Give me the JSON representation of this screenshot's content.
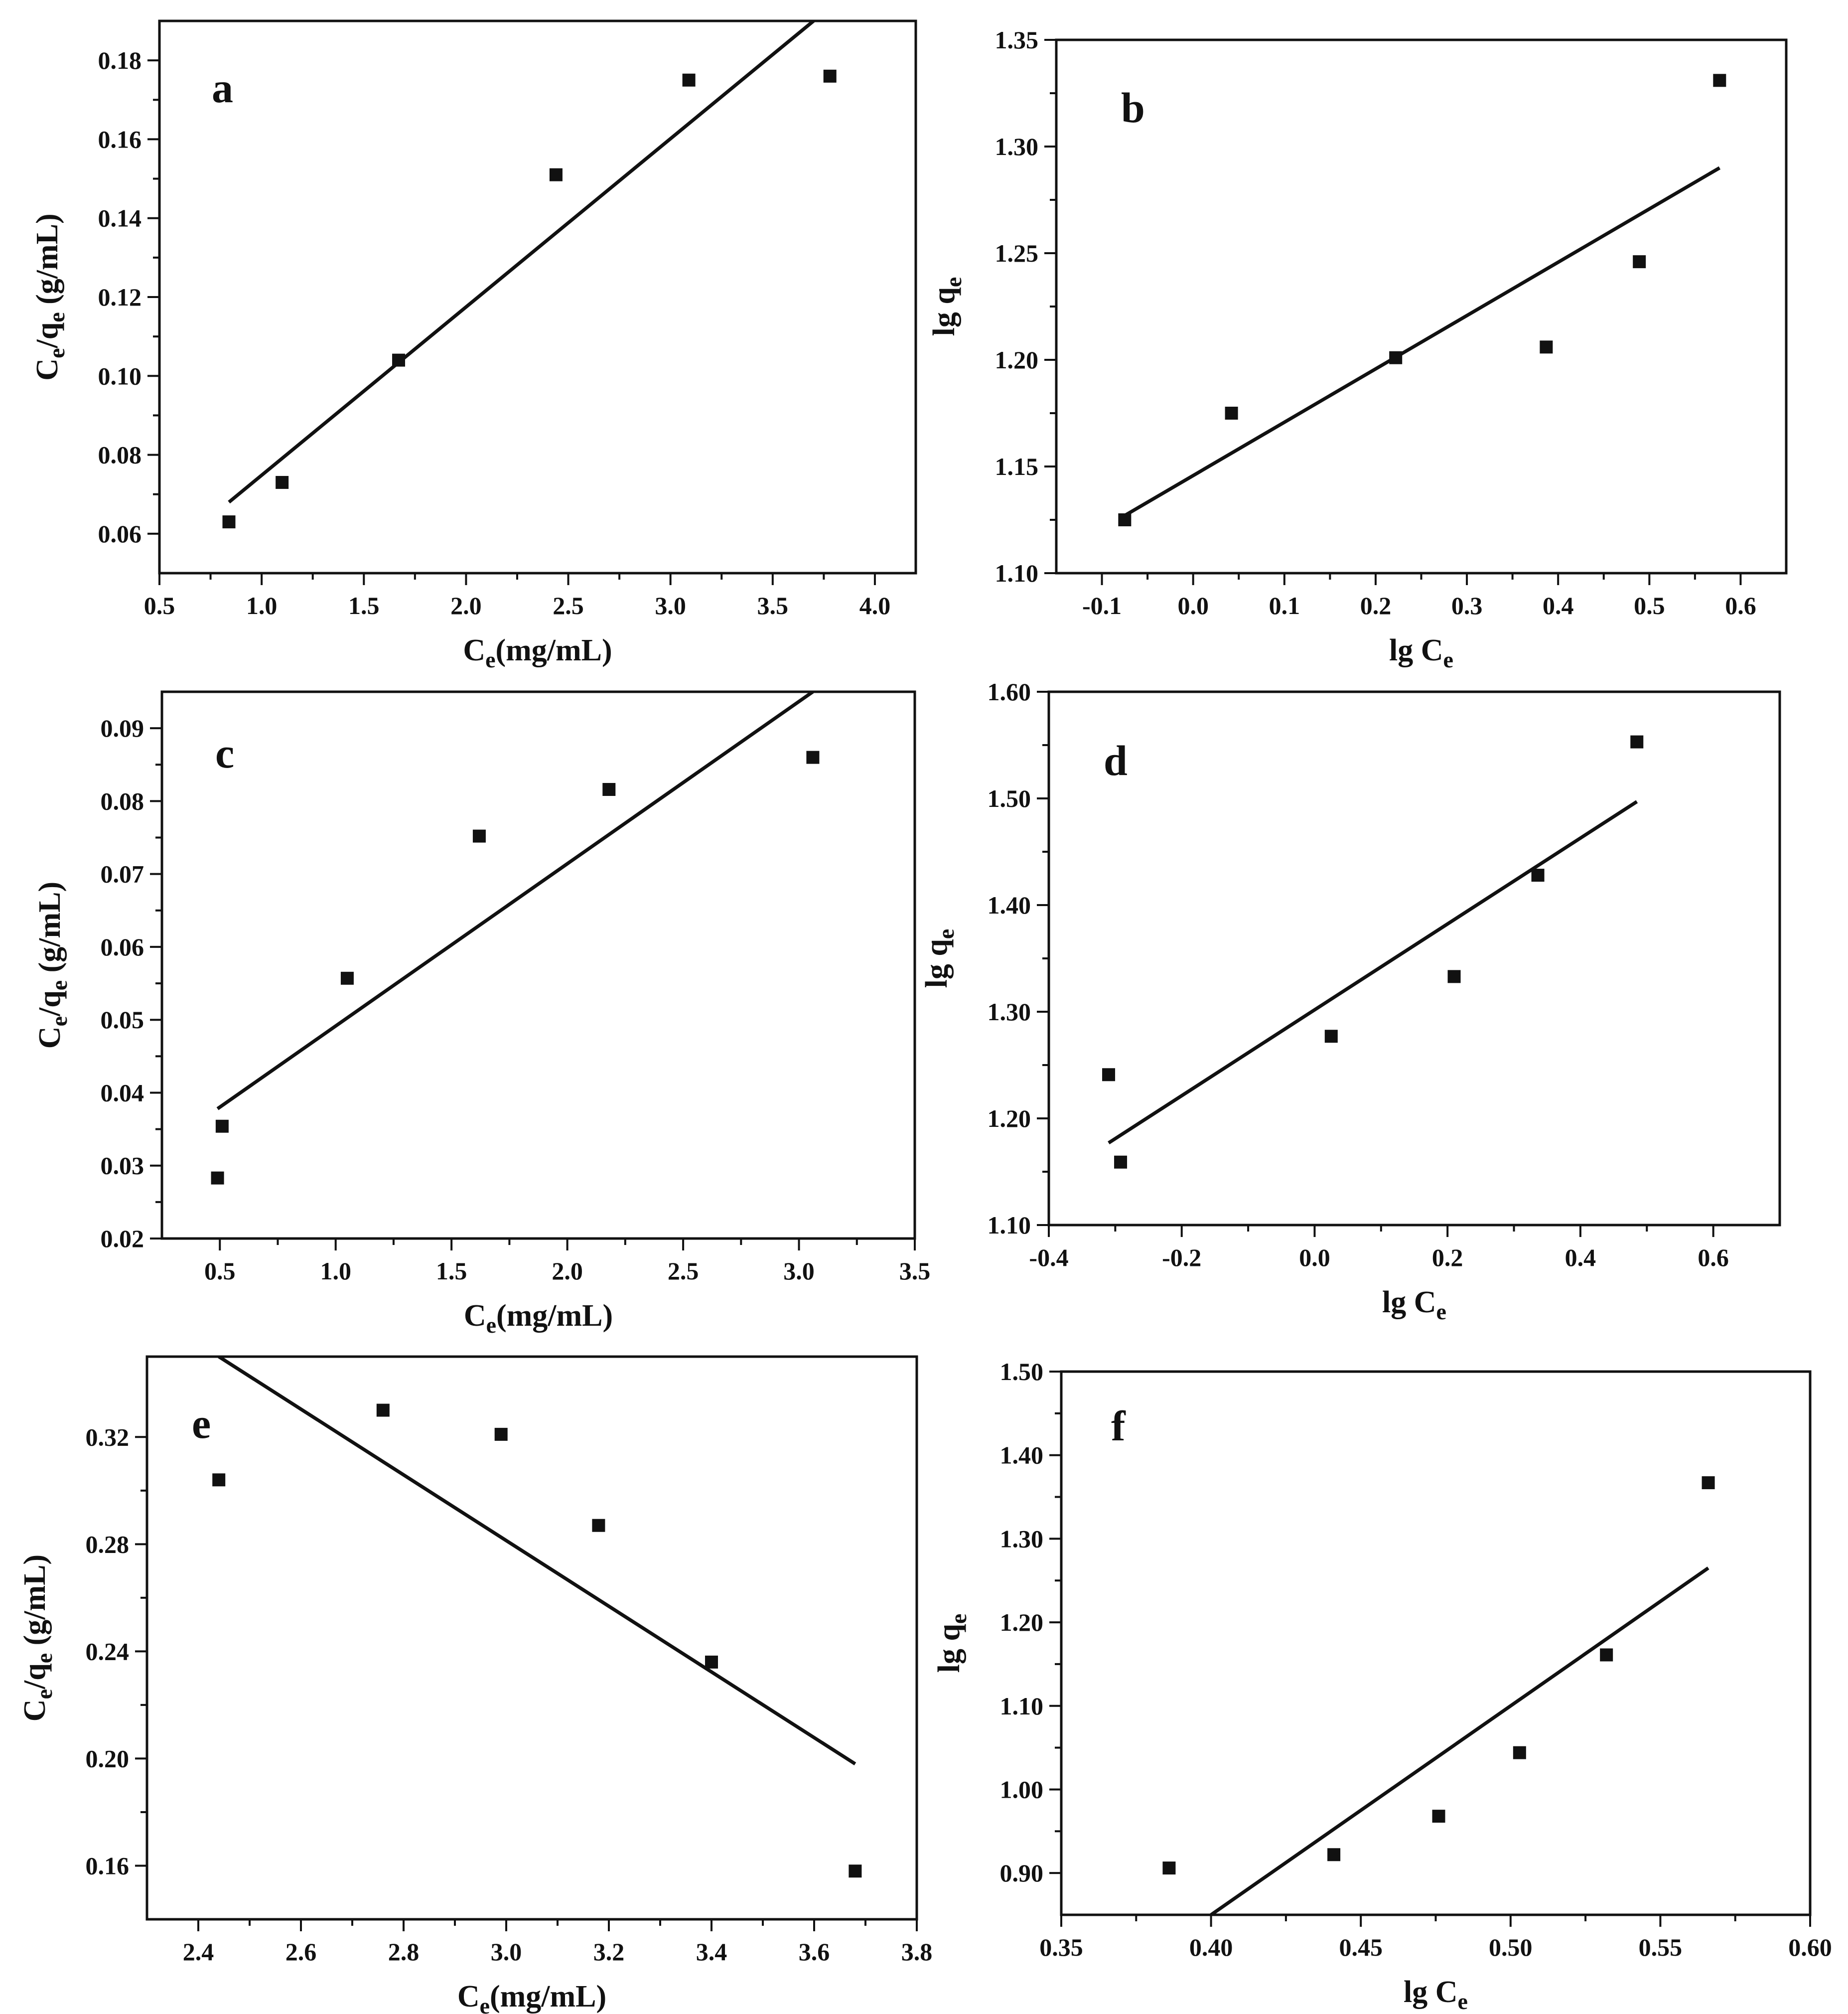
{
  "colors": {
    "ink": "#111111",
    "background": "#ffffff"
  },
  "chart_data": [
    {
      "panel": "a",
      "type": "scatter",
      "xlabel": {
        "base": "C",
        "sub": "e",
        "tail": "(mg/mL)"
      },
      "ylabel": {
        "base": "C",
        "sub": "e",
        "mid": "/q",
        "sub2": "e",
        "tail": " (g/mL)"
      },
      "xlim": [
        0.5,
        4.2
      ],
      "ylim": [
        0.05,
        0.19
      ],
      "xticks": [
        0.5,
        1.0,
        1.5,
        2.0,
        2.5,
        3.0,
        3.5,
        4.0
      ],
      "xtick_labels": [
        "0.5",
        "1.0",
        "1.5",
        "2.0",
        "2.5",
        "3.0",
        "3.5",
        "4.0"
      ],
      "yticks": [
        0.06,
        0.08,
        0.1,
        0.12,
        0.14,
        0.16,
        0.18
      ],
      "ytick_labels": [
        "0.06",
        "0.08",
        "0.10",
        "0.12",
        "0.14",
        "0.16",
        "0.18"
      ],
      "points": [
        [
          0.84,
          0.063
        ],
        [
          1.1,
          0.073
        ],
        [
          1.67,
          0.104
        ],
        [
          2.44,
          0.151
        ],
        [
          3.09,
          0.175
        ],
        [
          3.78,
          0.176
        ]
      ],
      "fit": [
        [
          0.84,
          0.068
        ],
        [
          3.7,
          0.19
        ]
      ]
    },
    {
      "panel": "b",
      "type": "scatter",
      "xlabel": {
        "base": "lg C",
        "sub": "e",
        "tail": ""
      },
      "ylabel": {
        "base": "lg q",
        "sub": "e",
        "mid": "",
        "sub2": "",
        "tail": ""
      },
      "xlim": [
        -0.15,
        0.65
      ],
      "ylim": [
        1.1,
        1.35
      ],
      "xticks": [
        -0.1,
        0.0,
        0.1,
        0.2,
        0.3,
        0.4,
        0.5,
        0.6
      ],
      "xtick_labels": [
        "-0.1",
        "0.0",
        "0.1",
        "0.2",
        "0.3",
        "0.4",
        "0.5",
        "0.6"
      ],
      "yticks": [
        1.1,
        1.15,
        1.2,
        1.25,
        1.3,
        1.35
      ],
      "ytick_labels": [
        "1.10",
        "1.15",
        "1.20",
        "1.25",
        "1.30",
        "1.35"
      ],
      "points": [
        [
          -0.075,
          1.125
        ],
        [
          0.042,
          1.175
        ],
        [
          0.222,
          1.201
        ],
        [
          0.387,
          1.206
        ],
        [
          0.489,
          1.246
        ],
        [
          0.577,
          1.331
        ]
      ],
      "fit": [
        [
          -0.075,
          1.127
        ],
        [
          0.577,
          1.29
        ]
      ]
    },
    {
      "panel": "c",
      "type": "scatter",
      "xlabel": {
        "base": "C",
        "sub": "e",
        "tail": "(mg/mL)"
      },
      "ylabel": {
        "base": "C",
        "sub": "e",
        "mid": "/q",
        "sub2": "e",
        "tail": " (g/mL)"
      },
      "xlim": [
        0.25,
        3.5
      ],
      "ylim": [
        0.02,
        0.095
      ],
      "xticks": [
        0.5,
        1.0,
        1.5,
        2.0,
        2.5,
        3.0,
        3.5
      ],
      "xtick_labels": [
        "0.5",
        "1.0",
        "1.5",
        "2.0",
        "2.5",
        "3.0",
        "3.5"
      ],
      "yticks": [
        0.02,
        0.03,
        0.04,
        0.05,
        0.06,
        0.07,
        0.08,
        0.09
      ],
      "ytick_labels": [
        "0.02",
        "0.03",
        "0.04",
        "0.05",
        "0.06",
        "0.07",
        "0.08",
        "0.09"
      ],
      "points": [
        [
          0.49,
          0.0283
        ],
        [
          0.51,
          0.0354
        ],
        [
          1.05,
          0.0557
        ],
        [
          1.62,
          0.0752
        ],
        [
          2.18,
          0.0816
        ],
        [
          3.06,
          0.086
        ]
      ],
      "fit": [
        [
          0.49,
          0.0378
        ],
        [
          3.06,
          0.095
        ]
      ]
    },
    {
      "panel": "d",
      "type": "scatter",
      "xlabel": {
        "base": "lg C",
        "sub": "e",
        "tail": ""
      },
      "ylabel": {
        "base": "lg q",
        "sub": "e",
        "mid": "",
        "sub2": "",
        "tail": ""
      },
      "xlim": [
        -0.4,
        0.7
      ],
      "ylim": [
        1.1,
        1.6
      ],
      "xticks": [
        -0.4,
        -0.2,
        0.0,
        0.2,
        0.4,
        0.6
      ],
      "xtick_labels": [
        "-0.4",
        "-0.2",
        "0.0",
        "0.2",
        "0.4",
        "0.6"
      ],
      "yticks": [
        1.1,
        1.2,
        1.3,
        1.4,
        1.5,
        1.6
      ],
      "ytick_labels": [
        "1.10",
        "1.20",
        "1.30",
        "1.40",
        "1.50",
        "1.60"
      ],
      "points": [
        [
          -0.31,
          1.241
        ],
        [
          -0.292,
          1.159
        ],
        [
          0.025,
          1.277
        ],
        [
          0.21,
          1.333
        ],
        [
          0.336,
          1.428
        ],
        [
          0.485,
          1.553
        ]
      ],
      "fit": [
        [
          -0.31,
          1.177
        ],
        [
          0.485,
          1.497
        ]
      ]
    },
    {
      "panel": "e",
      "type": "scatter",
      "xlabel": {
        "base": "C",
        "sub": "e",
        "tail": "(mg/mL)"
      },
      "ylabel": {
        "base": "C",
        "sub": "e",
        "mid": "/q",
        "sub2": "e",
        "tail": " (g/mL)"
      },
      "xlim": [
        2.3,
        3.8
      ],
      "ylim": [
        0.14,
        0.35
      ],
      "xticks": [
        2.4,
        2.6,
        2.8,
        3.0,
        3.2,
        3.4,
        3.6,
        3.8
      ],
      "xtick_labels": [
        "2.4",
        "2.6",
        "2.8",
        "3.0",
        "3.2",
        "3.4",
        "3.6",
        "3.8"
      ],
      "yticks": [
        0.16,
        0.2,
        0.24,
        0.28,
        0.32
      ],
      "ytick_labels": [
        "0.16",
        "0.20",
        "0.24",
        "0.28",
        "0.32"
      ],
      "points": [
        [
          2.44,
          0.304
        ],
        [
          2.76,
          0.33
        ],
        [
          2.99,
          0.321
        ],
        [
          3.18,
          0.287
        ],
        [
          3.4,
          0.236
        ],
        [
          3.68,
          0.158
        ]
      ],
      "fit": [
        [
          2.44,
          0.35
        ],
        [
          3.68,
          0.198
        ]
      ]
    },
    {
      "panel": "f",
      "type": "scatter",
      "xlabel": {
        "base": "lg C",
        "sub": "e",
        "tail": ""
      },
      "ylabel": {
        "base": "lg q",
        "sub": "e",
        "mid": "",
        "sub2": "",
        "tail": ""
      },
      "xlim": [
        0.35,
        0.6
      ],
      "ylim": [
        0.85,
        1.5
      ],
      "xticks": [
        0.35,
        0.4,
        0.45,
        0.5,
        0.55,
        0.6
      ],
      "xtick_labels": [
        "0.35",
        "0.40",
        "0.45",
        "0.50",
        "0.55",
        "0.60"
      ],
      "yticks": [
        0.9,
        1.0,
        1.1,
        1.2,
        1.3,
        1.4,
        1.5
      ],
      "ytick_labels": [
        "0.90",
        "1.00",
        "1.10",
        "1.20",
        "1.30",
        "1.40",
        "1.50"
      ],
      "points": [
        [
          0.386,
          0.906
        ],
        [
          0.441,
          0.922
        ],
        [
          0.476,
          0.968
        ],
        [
          0.503,
          1.044
        ],
        [
          0.532,
          1.161
        ],
        [
          0.566,
          1.367
        ]
      ],
      "fit": [
        [
          0.4,
          0.85
        ],
        [
          0.566,
          1.265
        ]
      ]
    }
  ]
}
